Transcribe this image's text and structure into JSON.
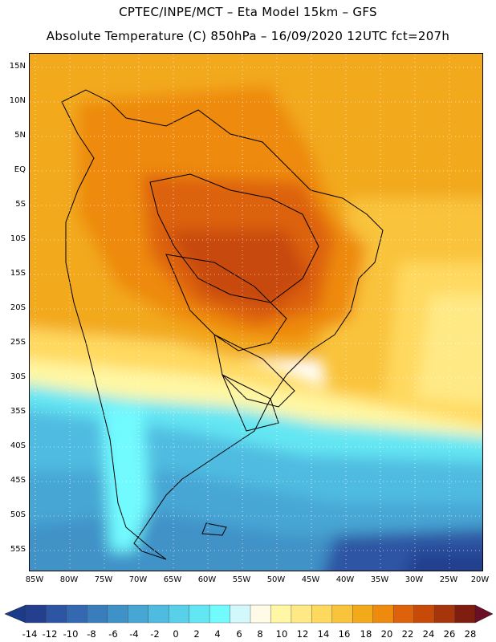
{
  "title_line1": "CPTEC/INPE/MCT –  Eta Model 15km – GFS",
  "title_line2": "Absolute Temperature (C) 850hPa – 16/09/2020 12UTC fct=207h",
  "lat_labels": [
    "15N",
    "10N",
    "5N",
    "EQ",
    "5S",
    "10S",
    "15S",
    "20S",
    "25S",
    "30S",
    "35S",
    "40S",
    "45S",
    "50S",
    "55S"
  ],
  "lon_labels": [
    "85W",
    "80W",
    "75W",
    "70W",
    "65W",
    "60W",
    "55W",
    "50W",
    "45W",
    "40W",
    "35W",
    "30W",
    "25W",
    "20W"
  ],
  "colorbar": {
    "labels": [
      "-14",
      "-12",
      "-10",
      "-8",
      "-6",
      "-4",
      "-2",
      "0",
      "2",
      "4",
      "6",
      "8",
      "10",
      "12",
      "14",
      "16",
      "18",
      "20",
      "22",
      "24",
      "26",
      "28"
    ],
    "colors": [
      "#233f8e",
      "#2e55a3",
      "#3468b0",
      "#3a7dbd",
      "#3f92c7",
      "#47a6d4",
      "#4fbbe0",
      "#59d0ea",
      "#63e6f3",
      "#72fbff",
      "#d2f8fc",
      "#fffbe6",
      "#fff7a3",
      "#ffe985",
      "#ffd95e",
      "#f9c33b",
      "#f2a91a",
      "#ee8a0d",
      "#dd620b",
      "#c74a09",
      "#a7350b",
      "#7f1d0e"
    ],
    "under_color": "#1b3a8a",
    "over_color": "#6b0f27"
  }
}
